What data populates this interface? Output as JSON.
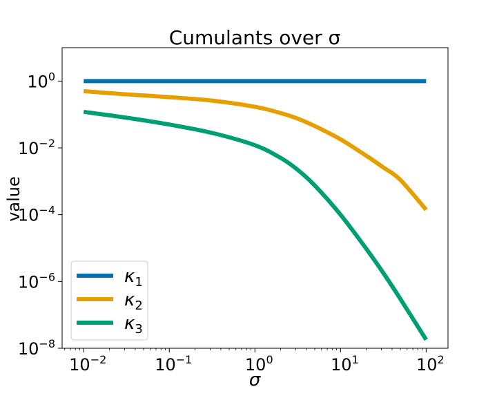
{
  "chart_data": {
    "type": "line",
    "title": "Cumulants over σ",
    "xlabel": "σ",
    "ylabel": "value",
    "xscale": "log",
    "yscale": "log",
    "xlim": [
      0.0056,
      180
    ],
    "ylim": [
      1e-08,
      10
    ],
    "xticks": [
      {
        "value": 0.01,
        "label": "10",
        "exp": "−2"
      },
      {
        "value": 0.1,
        "label": "10",
        "exp": "−1"
      },
      {
        "value": 1,
        "label": "10",
        "exp": "0"
      },
      {
        "value": 10,
        "label": "10",
        "exp": "1"
      },
      {
        "value": 100,
        "label": "10",
        "exp": "2"
      }
    ],
    "yticks": [
      {
        "value": 1,
        "label": "10",
        "exp": "0"
      },
      {
        "value": 0.01,
        "label": "10",
        "exp": "−2"
      },
      {
        "value": 0.0001,
        "label": "10",
        "exp": "−4"
      },
      {
        "value": 1e-06,
        "label": "10",
        "exp": "−6"
      },
      {
        "value": 1e-08,
        "label": "10",
        "exp": "−8"
      }
    ],
    "grid": false,
    "legend_position": "lower-left",
    "x": [
      0.01,
      0.0316,
      0.1,
      0.316,
      1,
      2,
      3.16,
      5,
      10,
      20,
      31.6,
      50,
      100
    ],
    "series": [
      {
        "name": "κ",
        "subscript": "1",
        "color": "#0072b2",
        "values": [
          1,
          1,
          1,
          1,
          1,
          1,
          1,
          1,
          1,
          1,
          1,
          1,
          1
        ]
      },
      {
        "name": "κ",
        "subscript": "2",
        "color": "#e69f00",
        "values": [
          0.5,
          0.4,
          0.33,
          0.26,
          0.17,
          0.11,
          0.075,
          0.045,
          0.018,
          0.0058,
          0.0026,
          0.0011,
          0.00014
        ]
      },
      {
        "name": "κ",
        "subscript": "3",
        "color": "#009e73",
        "values": [
          0.12,
          0.08,
          0.05,
          0.028,
          0.012,
          0.005,
          0.0022,
          0.00075,
          0.0001,
          9.5e-06,
          1.8e-06,
          3e-07,
          1.8e-08
        ]
      }
    ]
  }
}
